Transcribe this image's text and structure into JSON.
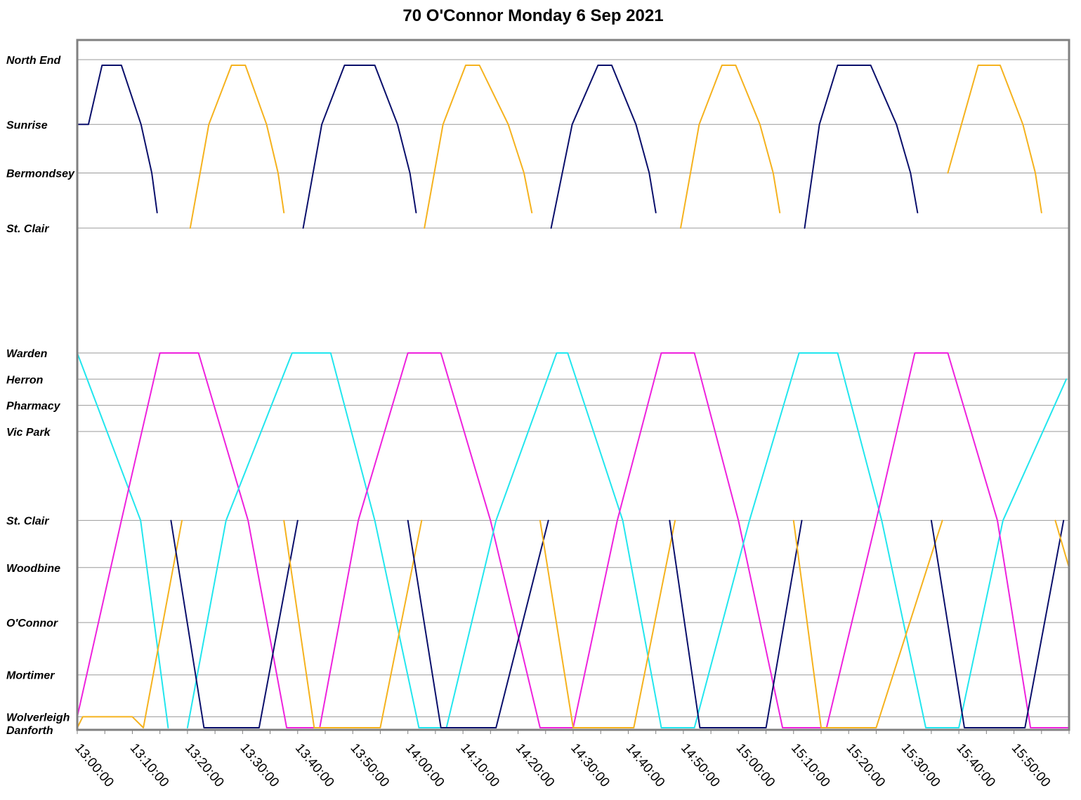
{
  "chart_data": {
    "type": "line",
    "title": "70 O'Connor Monday 6 Sep 2021",
    "x_start": "13:00:00",
    "x_end": "16:00:00",
    "x_ticks": [
      "13:00:00",
      "13:10:00",
      "13:20:00",
      "13:30:00",
      "13:40:00",
      "13:50:00",
      "14:00:00",
      "14:10:00",
      "14:20:00",
      "14:30:00",
      "14:40:00",
      "14:50:00",
      "15:00:00",
      "15:10:00",
      "15:20:00",
      "15:30:00",
      "15:40:00",
      "15:50:00"
    ],
    "grid": true,
    "legend": "none",
    "branches": [
      {
        "name_hidden": "north",
        "stops": [
          "North End",
          "Sunrise",
          "Bermondsey",
          "St. Clair"
        ],
        "y_scale": {
          "North End": 0,
          "Sunrise": 1,
          "Bermondsey": 1.75,
          "St. Clair": 2.6
        }
      },
      {
        "name_hidden": "south",
        "stops": [
          "Warden",
          "Herron",
          "Pharmacy",
          "Vic Park",
          "St. Clair",
          "Woodbine",
          "O'Connor",
          "Mortimer",
          "Wolverleigh",
          "Danforth"
        ],
        "y_scale": {
          "Warden": 0,
          "Herron": 0.5,
          "Pharmacy": 1,
          "Vic Park": 1.5,
          "St. Clair": 3.2,
          "Woodbine": 4.1,
          "O'Connor": 5.15,
          "Mortimer": 6.15,
          "Wolverleigh": 6.95,
          "Danforth": 7.2
        }
      }
    ],
    "colors": {
      "navy": "#0a0f6b",
      "orange": "#f5b21e",
      "cyan": "#22e6ee",
      "magenta": "#ee22dd"
    },
    "north_trips": [
      {
        "color": "navy",
        "start": "13:00:00",
        "up_min": 4.5,
        "dwell_min": 3.5,
        "down_min": 6.5,
        "from": "Sunrise",
        "to": "St. Clair"
      },
      {
        "color": "orange",
        "start": "13:20:30",
        "up_min": 7.5,
        "dwell_min": 2.5,
        "down_min": 7.0,
        "from": "St. Clair",
        "to": "St. Clair"
      },
      {
        "color": "navy",
        "start": "13:41:00",
        "up_min": 7.5,
        "dwell_min": 5.5,
        "down_min": 7.5,
        "from": "St. Clair",
        "to": "St. Clair"
      },
      {
        "color": "orange",
        "start": "14:03:00",
        "up_min": 7.5,
        "dwell_min": 2.5,
        "down_min": 9.5,
        "from": "St. Clair",
        "to": "St. Clair"
      },
      {
        "color": "navy",
        "start": "14:26:00",
        "up_min": 8.5,
        "dwell_min": 2.5,
        "down_min": 8.0,
        "from": "St. Clair",
        "to": "St. Clair"
      },
      {
        "color": "orange",
        "start": "14:49:30",
        "up_min": 7.5,
        "dwell_min": 2.5,
        "down_min": 8.0,
        "from": "St. Clair",
        "to": "St. Clair"
      },
      {
        "color": "navy",
        "start": "15:12:00",
        "up_min": 6.0,
        "dwell_min": 6.0,
        "down_min": 8.5,
        "from": "St. Clair",
        "to": "St. Clair"
      },
      {
        "color": "orange",
        "start": "15:38:00",
        "up_min": 5.5,
        "dwell_min": 4.0,
        "down_min": 7.5,
        "from": "Bermondsey",
        "to": "St. Clair"
      }
    ],
    "south_long_trips": [
      {
        "color": "cyan",
        "start": "13:00:00",
        "path": [
          [
            "13:00:00",
            "Warden"
          ],
          [
            "13:11:30",
            "St. Clair"
          ],
          [
            "13:16:30",
            "Danforth"
          ]
        ]
      },
      {
        "color": "magenta",
        "start": "13:00:00",
        "path": [
          [
            "13:00:00",
            "Wolverleigh"
          ],
          [
            "13:08:00",
            "St. Clair"
          ],
          [
            "13:15:00",
            "Warden"
          ],
          [
            "13:22:00",
            "Warden"
          ],
          [
            "13:31:00",
            "St. Clair"
          ],
          [
            "13:38:00",
            "Danforth"
          ],
          [
            "13:44:00",
            "Danforth"
          ]
        ]
      },
      {
        "color": "cyan",
        "start": "13:20:00",
        "path": [
          [
            "13:20:00",
            "Danforth"
          ],
          [
            "13:27:00",
            "St. Clair"
          ],
          [
            "13:39:00",
            "Warden"
          ],
          [
            "13:46:00",
            "Warden"
          ],
          [
            "13:54:00",
            "St. Clair"
          ],
          [
            "14:02:00",
            "Danforth"
          ],
          [
            "14:07:00",
            "Danforth"
          ]
        ]
      },
      {
        "color": "magenta",
        "start": "13:44:00",
        "path": [
          [
            "13:44:00",
            "Danforth"
          ],
          [
            "13:51:00",
            "St. Clair"
          ],
          [
            "14:00:00",
            "Warden"
          ],
          [
            "14:06:00",
            "Warden"
          ],
          [
            "14:15:00",
            "St. Clair"
          ],
          [
            "14:24:00",
            "Danforth"
          ],
          [
            "14:30:00",
            "Danforth"
          ]
        ]
      },
      {
        "color": "cyan",
        "start": "14:07:00",
        "path": [
          [
            "14:07:00",
            "Danforth"
          ],
          [
            "14:16:00",
            "St. Clair"
          ],
          [
            "14:27:00",
            "Warden"
          ],
          [
            "14:29:00",
            "Warden"
          ],
          [
            "14:39:00",
            "St. Clair"
          ],
          [
            "14:46:00",
            "Danforth"
          ],
          [
            "14:52:00",
            "Danforth"
          ]
        ]
      },
      {
        "color": "magenta",
        "start": "14:30:00",
        "path": [
          [
            "14:30:00",
            "Danforth"
          ],
          [
            "14:38:00",
            "St. Clair"
          ],
          [
            "14:46:00",
            "Warden"
          ],
          [
            "14:52:00",
            "Warden"
          ],
          [
            "15:00:00",
            "St. Clair"
          ],
          [
            "15:08:00",
            "Danforth"
          ],
          [
            "15:16:00",
            "Danforth"
          ]
        ]
      },
      {
        "color": "cyan",
        "start": "14:52:00",
        "path": [
          [
            "14:52:00",
            "Danforth"
          ],
          [
            "15:02:00",
            "St. Clair"
          ],
          [
            "15:11:00",
            "Warden"
          ],
          [
            "15:18:00",
            "Warden"
          ],
          [
            "15:26:00",
            "St. Clair"
          ],
          [
            "15:34:00",
            "Danforth"
          ],
          [
            "15:40:00",
            "Danforth"
          ],
          [
            "15:48:00",
            "St. Clair"
          ],
          [
            "15:59:30",
            "Herron"
          ]
        ]
      },
      {
        "color": "magenta",
        "start": "15:16:00",
        "path": [
          [
            "15:16:00",
            "Danforth"
          ],
          [
            "15:25:00",
            "St. Clair"
          ],
          [
            "15:32:00",
            "Warden"
          ],
          [
            "15:38:00",
            "Warden"
          ],
          [
            "15:47:00",
            "St. Clair"
          ],
          [
            "15:53:00",
            "Danforth"
          ],
          [
            "16:00:00",
            "Danforth"
          ]
        ]
      }
    ],
    "south_short_trips": [
      {
        "color": "orange",
        "start": "13:00:00",
        "path": [
          [
            "13:00:00",
            "Danforth"
          ],
          [
            "13:01:00",
            "Wolverleigh"
          ],
          [
            "13:10:00",
            "Wolverleigh"
          ],
          [
            "13:12:00",
            "Danforth"
          ],
          [
            "13:19:00",
            "St. Clair"
          ]
        ]
      },
      {
        "color": "navy",
        "start": "13:17:00",
        "path": [
          [
            "13:17:00",
            "St. Clair"
          ],
          [
            "13:23:00",
            "Danforth"
          ],
          [
            "13:33:00",
            "Danforth"
          ],
          [
            "13:40:00",
            "St. Clair"
          ]
        ]
      },
      {
        "color": "orange",
        "start": "13:37:30",
        "path": [
          [
            "13:37:30",
            "St. Clair"
          ],
          [
            "13:43:00",
            "Danforth"
          ],
          [
            "13:55:00",
            "Danforth"
          ],
          [
            "14:02:30",
            "St. Clair"
          ]
        ]
      },
      {
        "color": "navy",
        "start": "14:00:00",
        "path": [
          [
            "14:00:00",
            "St. Clair"
          ],
          [
            "14:06:00",
            "Danforth"
          ],
          [
            "14:16:00",
            "Danforth"
          ],
          [
            "14:25:30",
            "St. Clair"
          ]
        ]
      },
      {
        "color": "orange",
        "start": "14:24:00",
        "path": [
          [
            "14:24:00",
            "St. Clair"
          ],
          [
            "14:30:00",
            "Danforth"
          ],
          [
            "14:41:00",
            "Danforth"
          ],
          [
            "14:48:30",
            "St. Clair"
          ]
        ]
      },
      {
        "color": "navy",
        "start": "14:47:30",
        "path": [
          [
            "14:47:30",
            "St. Clair"
          ],
          [
            "14:53:00",
            "Danforth"
          ],
          [
            "15:05:00",
            "Danforth"
          ],
          [
            "15:11:30",
            "St. Clair"
          ]
        ]
      },
      {
        "color": "orange",
        "start": "15:10:00",
        "path": [
          [
            "15:10:00",
            "St. Clair"
          ],
          [
            "15:15:00",
            "Danforth"
          ],
          [
            "15:25:00",
            "Danforth"
          ],
          [
            "15:37:00",
            "St. Clair"
          ]
        ]
      },
      {
        "color": "navy",
        "start": "15:35:00",
        "path": [
          [
            "15:35:00",
            "St. Clair"
          ],
          [
            "15:41:00",
            "Danforth"
          ],
          [
            "15:52:00",
            "Danforth"
          ],
          [
            "15:59:00",
            "St. Clair"
          ]
        ]
      },
      {
        "color": "orange",
        "start": "15:57:30",
        "path": [
          [
            "15:57:30",
            "St. Clair"
          ],
          [
            "16:00:00",
            "Woodbine"
          ]
        ]
      }
    ]
  }
}
